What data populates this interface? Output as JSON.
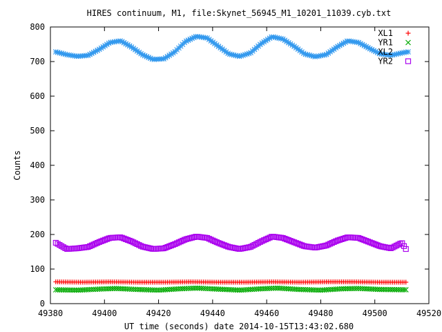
{
  "chart_data": {
    "type": "scatter",
    "title": "HIRES continuum, M1, file:Skynet_56945_M1_10201_11039.cyb.txt",
    "xlabel": "UT time (seconds) date 2014-10-15T13:43:02.680",
    "ylabel": "Counts",
    "xlim": [
      49380,
      49520
    ],
    "ylim": [
      0,
      800
    ],
    "xticks": [
      49380,
      49400,
      49420,
      49440,
      49460,
      49480,
      49500,
      49520
    ],
    "yticks": [
      0,
      100,
      200,
      300,
      400,
      500,
      600,
      700,
      800
    ],
    "grid": false,
    "legend_position": "top-right",
    "x_range": [
      49382,
      49512
    ],
    "series": [
      {
        "name": "XL1",
        "marker": "+",
        "color": "#ff0000",
        "points": [
          [
            49382,
            63
          ],
          [
            49392,
            62
          ],
          [
            49402,
            63
          ],
          [
            49412,
            62
          ],
          [
            49422,
            62
          ],
          [
            49432,
            63
          ],
          [
            49442,
            62
          ],
          [
            49452,
            62
          ],
          [
            49462,
            63
          ],
          [
            49472,
            62
          ],
          [
            49482,
            63
          ],
          [
            49492,
            63
          ],
          [
            49502,
            62
          ],
          [
            49512,
            62
          ]
        ]
      },
      {
        "name": "YR1",
        "marker": "x",
        "color": "#00aa00",
        "points": [
          [
            49382,
            40
          ],
          [
            49390,
            39
          ],
          [
            49398,
            42
          ],
          [
            49404,
            44
          ],
          [
            49412,
            41
          ],
          [
            49420,
            39
          ],
          [
            49428,
            43
          ],
          [
            49434,
            45
          ],
          [
            49442,
            42
          ],
          [
            49450,
            39
          ],
          [
            49458,
            43
          ],
          [
            49464,
            45
          ],
          [
            49472,
            41
          ],
          [
            49480,
            39
          ],
          [
            49488,
            43
          ],
          [
            49494,
            44
          ],
          [
            49502,
            41
          ],
          [
            49512,
            40
          ]
        ]
      },
      {
        "name": "XL2",
        "marker": "*",
        "color": "#3399ee",
        "points": [
          [
            49382,
            728
          ],
          [
            49386,
            720
          ],
          [
            49390,
            715
          ],
          [
            49394,
            718
          ],
          [
            49398,
            735
          ],
          [
            49402,
            755
          ],
          [
            49406,
            760
          ],
          [
            49410,
            742
          ],
          [
            49414,
            720
          ],
          [
            49418,
            706
          ],
          [
            49422,
            708
          ],
          [
            49426,
            728
          ],
          [
            49430,
            758
          ],
          [
            49434,
            773
          ],
          [
            49438,
            768
          ],
          [
            49442,
            745
          ],
          [
            49446,
            722
          ],
          [
            49450,
            715
          ],
          [
            49454,
            725
          ],
          [
            49458,
            752
          ],
          [
            49462,
            772
          ],
          [
            49466,
            765
          ],
          [
            49470,
            745
          ],
          [
            49474,
            722
          ],
          [
            49478,
            714
          ],
          [
            49482,
            720
          ],
          [
            49486,
            742
          ],
          [
            49490,
            760
          ],
          [
            49494,
            755
          ],
          [
            49498,
            738
          ],
          [
            49502,
            722
          ],
          [
            49506,
            718
          ],
          [
            49510,
            725
          ],
          [
            49512,
            728
          ]
        ]
      },
      {
        "name": "YR2",
        "marker": "square",
        "color": "#aa00ee",
        "points": [
          [
            49382,
            176
          ],
          [
            49386,
            158
          ],
          [
            49390,
            160
          ],
          [
            49394,
            164
          ],
          [
            49398,
            178
          ],
          [
            49402,
            190
          ],
          [
            49406,
            192
          ],
          [
            49410,
            180
          ],
          [
            49414,
            165
          ],
          [
            49418,
            158
          ],
          [
            49422,
            160
          ],
          [
            49426,
            172
          ],
          [
            49430,
            186
          ],
          [
            49434,
            194
          ],
          [
            49438,
            190
          ],
          [
            49442,
            176
          ],
          [
            49446,
            164
          ],
          [
            49450,
            158
          ],
          [
            49454,
            164
          ],
          [
            49458,
            180
          ],
          [
            49462,
            194
          ],
          [
            49466,
            190
          ],
          [
            49470,
            178
          ],
          [
            49474,
            166
          ],
          [
            49478,
            162
          ],
          [
            49482,
            168
          ],
          [
            49486,
            182
          ],
          [
            49490,
            192
          ],
          [
            49494,
            190
          ],
          [
            49498,
            178
          ],
          [
            49502,
            166
          ],
          [
            49506,
            160
          ],
          [
            49510,
            176
          ],
          [
            49512,
            152
          ]
        ]
      }
    ]
  }
}
